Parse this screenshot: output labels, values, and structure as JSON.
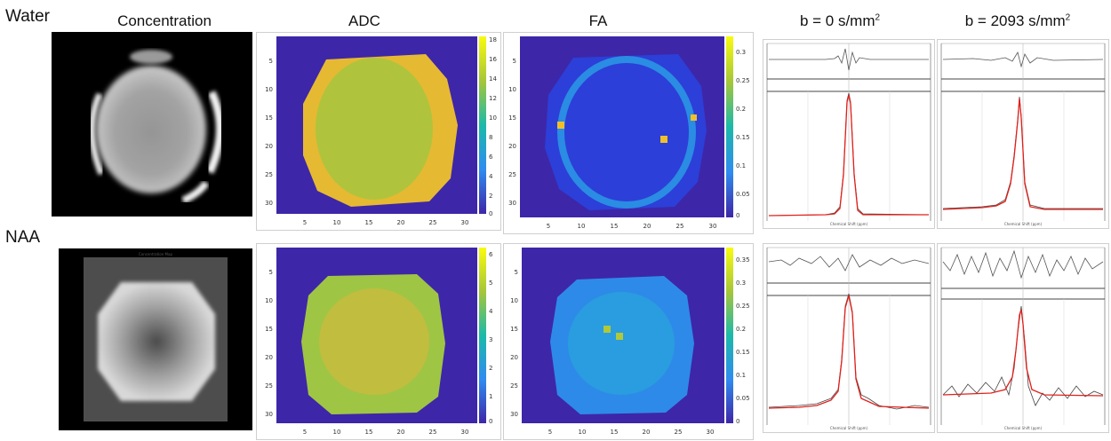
{
  "rows": {
    "water": "Water",
    "naa": "NAA"
  },
  "columns": {
    "concentration": "Concentration",
    "adc": "ADC",
    "fa": "FA",
    "b0_prefix": "b = 0 s/mm",
    "b0_sup": "2",
    "b2093_prefix": "b = 2093 s/mm",
    "b2093_sup": "2"
  },
  "naa_concentration_title": "Concentration Map",
  "map_axis_ticks": [
    "5",
    "10",
    "15",
    "20",
    "25",
    "30"
  ],
  "water_adc_colorbar": [
    "18",
    "16",
    "14",
    "12",
    "10",
    "8",
    "6",
    "4",
    "2",
    "0"
  ],
  "water_fa_colorbar": [
    "0.3",
    "0.25",
    "0.2",
    "0.15",
    "0.1",
    "0.05",
    "0"
  ],
  "naa_adc_colorbar": [
    "6",
    "5",
    "4",
    "3",
    "2",
    "1",
    "0"
  ],
  "naa_fa_colorbar": [
    "0.35",
    "0.3",
    "0.25",
    "0.2",
    "0.15",
    "0.1",
    "0.05",
    "0"
  ],
  "spectrum_x_label": "Chemical Shift (ppm)",
  "colors": {
    "background_map": "#3e26a8",
    "fit_line": "#e0201b",
    "raw_line": "#444444"
  }
}
